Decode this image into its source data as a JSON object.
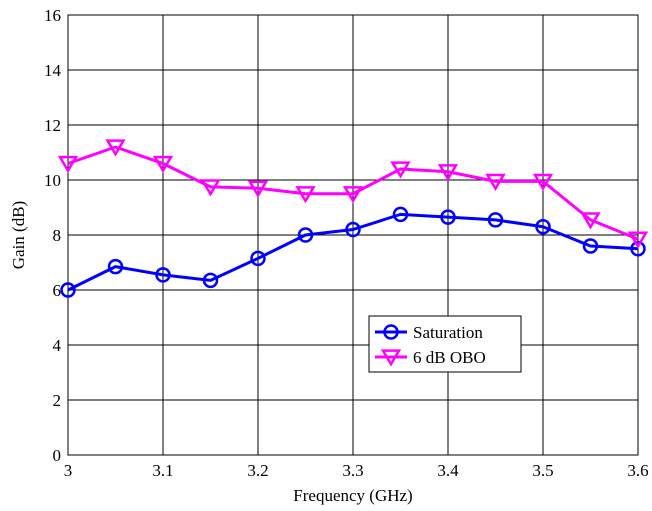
{
  "chart_data": {
    "type": "line",
    "xlabel": "Frequency (GHz)",
    "ylabel": "Gain (dB)",
    "xlim": [
      3,
      3.6
    ],
    "ylim": [
      0,
      16
    ],
    "xticks": [
      "3",
      "3.1",
      "3.2",
      "3.3",
      "3.4",
      "3.5",
      "3.6"
    ],
    "yticks": [
      "0",
      "2",
      "4",
      "6",
      "8",
      "10",
      "12",
      "14",
      "16"
    ],
    "grid": true,
    "legend_position": "lower-right",
    "x": [
      3.0,
      3.05,
      3.1,
      3.15,
      3.2,
      3.25,
      3.3,
      3.35,
      3.4,
      3.45,
      3.5,
      3.55,
      3.6
    ],
    "series": [
      {
        "name": "Saturation",
        "color": "#0000ff",
        "marker": "circle",
        "values": [
          6.0,
          6.85,
          6.55,
          6.35,
          7.15,
          8.0,
          8.2,
          8.75,
          8.65,
          8.55,
          8.3,
          7.6,
          7.5
        ]
      },
      {
        "name": "6 dB OBO",
        "color": "#ff00ff",
        "marker": "triangle-down",
        "values": [
          10.6,
          11.2,
          10.6,
          9.75,
          9.7,
          9.5,
          9.5,
          10.4,
          10.3,
          9.95,
          9.95,
          8.55,
          7.85
        ]
      }
    ]
  }
}
